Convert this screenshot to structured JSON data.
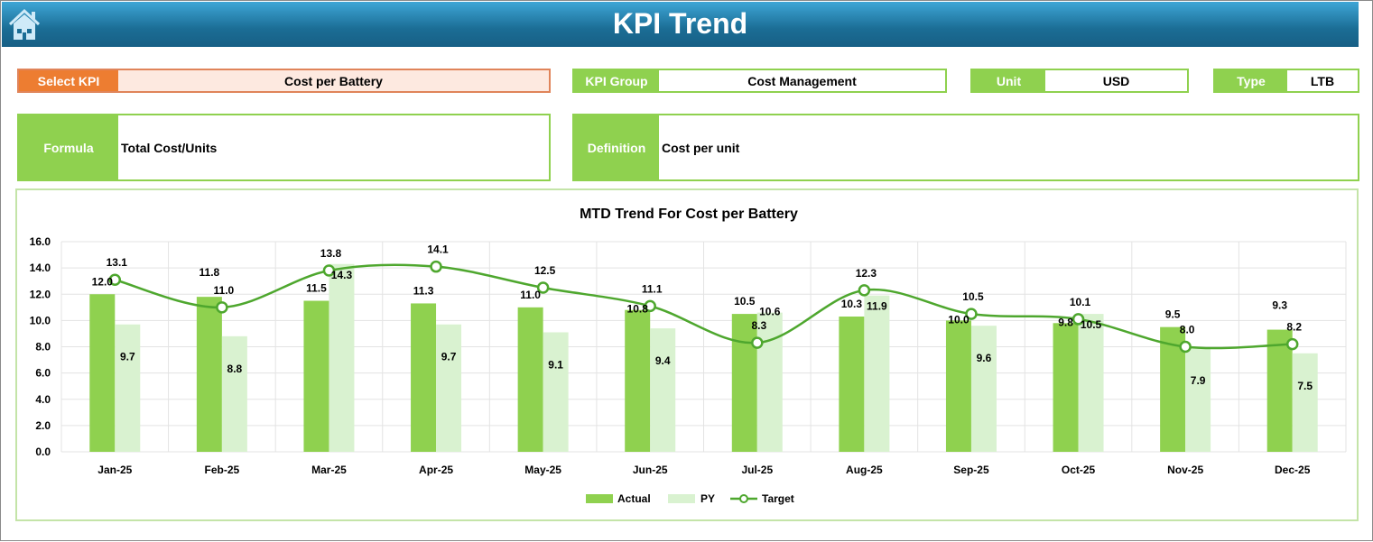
{
  "header": {
    "title": "KPI Trend",
    "home_icon": "home-icon"
  },
  "fields": {
    "select_kpi": {
      "label": "Select KPI",
      "value": "Cost per Battery"
    },
    "kpi_group": {
      "label": "KPI Group",
      "value": "Cost Management"
    },
    "unit": {
      "label": "Unit",
      "value": "USD"
    },
    "type": {
      "label": "Type",
      "value": "LTB"
    },
    "formula": {
      "label": "Formula",
      "value": "Total Cost/Units"
    },
    "definition": {
      "label": "Definition",
      "value": "Cost per unit"
    }
  },
  "colors": {
    "accent_orange": "#ed7d31",
    "green": "#8fd14f",
    "light_green": "#d9f2d0",
    "target_line": "#4ea72e",
    "header_blue": "#1b6d95"
  },
  "chart_data": {
    "type": "bar",
    "title": "MTD Trend For Cost per Battery",
    "categories": [
      "Jan-25",
      "Feb-25",
      "Mar-25",
      "Apr-25",
      "May-25",
      "Jun-25",
      "Jul-25",
      "Aug-25",
      "Sep-25",
      "Oct-25",
      "Nov-25",
      "Dec-25"
    ],
    "series": [
      {
        "name": "Actual",
        "type": "bar",
        "color": "#8fd14f",
        "values": [
          12.0,
          11.8,
          11.5,
          11.3,
          11.0,
          10.8,
          10.5,
          10.3,
          10.0,
          9.8,
          9.5,
          9.3
        ]
      },
      {
        "name": "PY",
        "type": "bar",
        "color": "#d9f2d0",
        "values": [
          9.7,
          8.8,
          14.3,
          9.7,
          9.1,
          9.4,
          10.6,
          11.9,
          9.6,
          10.5,
          7.9,
          7.5
        ]
      },
      {
        "name": "Target",
        "type": "line",
        "color": "#4ea72e",
        "values": [
          13.1,
          11.0,
          13.8,
          14.1,
          12.5,
          11.1,
          8.3,
          12.3,
          10.5,
          10.1,
          8.0,
          8.2
        ]
      }
    ],
    "ylim": [
      0,
      16
    ],
    "yticks": [
      "0.0",
      "2.0",
      "4.0",
      "6.0",
      "8.0",
      "10.0",
      "12.0",
      "14.0",
      "16.0"
    ],
    "grid": true,
    "legend": "bottom"
  }
}
